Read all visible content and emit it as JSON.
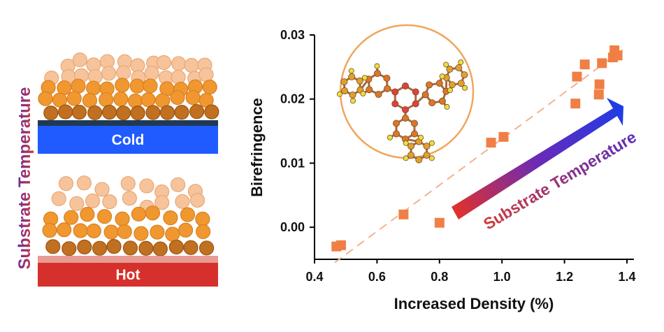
{
  "left_panel": {
    "side_label": "Substrate Temperature",
    "side_label_colors": [
      "#d63a2e",
      "#5b2bb5"
    ],
    "cold_label": "Cold",
    "hot_label": "Hot",
    "cold_color": "#1f5bff",
    "cold_cap_color": "#1f3a55",
    "hot_color": "#d6302c",
    "hot_cap_color": "#e79b93",
    "particle_colors": {
      "light": "#f7c39a",
      "mid": "#f0982f",
      "dark": "#c07020"
    }
  },
  "arrow_label": "Substrate Temperature",
  "arrow_colors": [
    "#e0322a",
    "#6a2ab8",
    "#1d3de6"
  ],
  "marker_color": "#f07f45",
  "fit_line_color": "#f5b28a",
  "chart_data": {
    "type": "scatter",
    "xlabel": "Increased Density (%)",
    "ylabel": "Birefringence",
    "xlim": [
      0.4,
      1.4
    ],
    "ylim": [
      -0.005,
      0.03
    ],
    "x_ticks": [
      "0.4",
      "0.6",
      "0.8",
      "1.0",
      "1.2",
      "1.4"
    ],
    "y_ticks": [
      "0.00",
      "0.01",
      "0.02",
      "0.03"
    ],
    "grid": false,
    "marker": "square",
    "points": [
      {
        "x": 0.47,
        "y": -0.003
      },
      {
        "x": 0.485,
        "y": -0.0028
      },
      {
        "x": 0.685,
        "y": 0.002
      },
      {
        "x": 0.8,
        "y": 0.0007
      },
      {
        "x": 0.965,
        "y": 0.0132
      },
      {
        "x": 1.005,
        "y": 0.0141
      },
      {
        "x": 1.235,
        "y": 0.0193
      },
      {
        "x": 1.24,
        "y": 0.0235
      },
      {
        "x": 1.265,
        "y": 0.0254
      },
      {
        "x": 1.31,
        "y": 0.0207
      },
      {
        "x": 1.312,
        "y": 0.0223
      },
      {
        "x": 1.32,
        "y": 0.0256
      },
      {
        "x": 1.355,
        "y": 0.0265
      },
      {
        "x": 1.36,
        "y": 0.0276
      },
      {
        "x": 1.37,
        "y": 0.0268
      }
    ],
    "fit_line": {
      "style": "dashed",
      "x": [
        0.465,
        1.4
      ],
      "y": [
        -0.0055,
        0.0282
      ]
    }
  }
}
